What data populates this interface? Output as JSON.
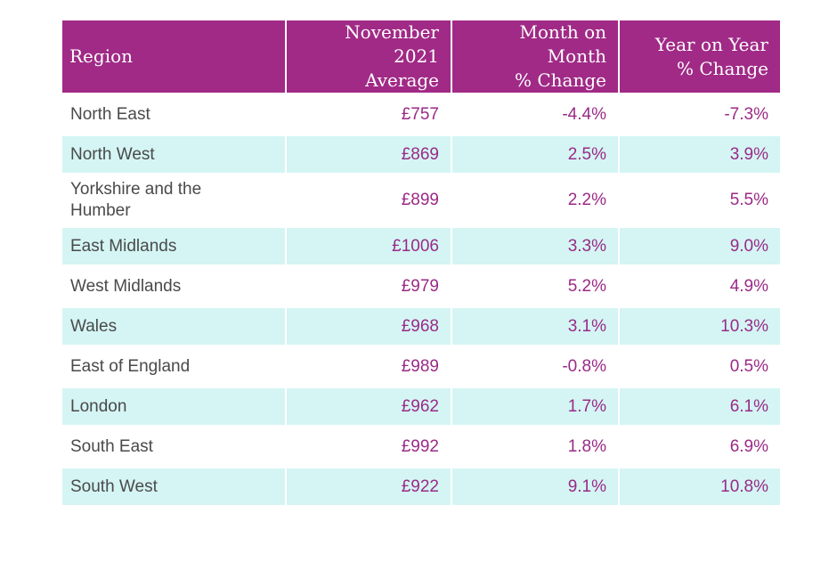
{
  "chart_data": {
    "type": "table",
    "columns": [
      "Region",
      "November\n2021\nAverage",
      "Month on\nMonth\n% Change",
      "Year on Year\n% Change"
    ],
    "rows": [
      [
        "North East",
        "£757",
        "-4.4%",
        "-7.3%"
      ],
      [
        "North West",
        "£869",
        "2.5%",
        "3.9%"
      ],
      [
        "Yorkshire and the Humber",
        "£899",
        "2.2%",
        "5.5%"
      ],
      [
        "East Midlands",
        "£1006",
        "3.3%",
        "9.0%"
      ],
      [
        "West Midlands",
        "£979",
        "5.2%",
        "4.9%"
      ],
      [
        "Wales",
        "£968",
        "3.1%",
        "10.3%"
      ],
      [
        "East of England",
        "£989",
        "-0.8%",
        "0.5%"
      ],
      [
        "London",
        "£962",
        "1.7%",
        "6.1%"
      ],
      [
        "South East",
        "£992",
        "1.8%",
        "6.9%"
      ],
      [
        "South West",
        "£922",
        "9.1%",
        "10.8%"
      ]
    ],
    "colors": {
      "header_bg": "#a02a86",
      "header_text": "#ffffff",
      "band_bg": "#d4f5f4",
      "value_text": "#9a2a86",
      "region_text": "#4a4a4a"
    }
  }
}
